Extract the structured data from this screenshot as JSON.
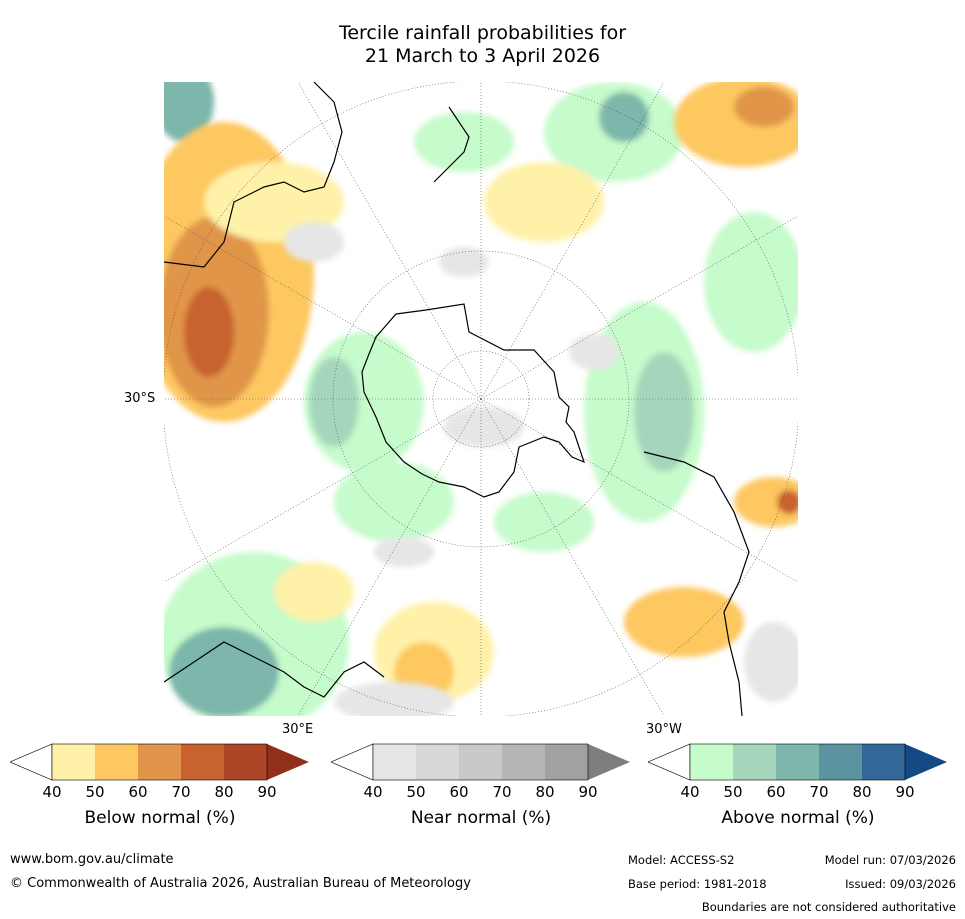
{
  "title": {
    "line1": "Tercile rainfall probabilities for",
    "line2": "21 March to 3 April 2026"
  },
  "map": {
    "labels": {
      "lat_label": "30°S",
      "lon_east": "30°E",
      "lon_west": "30°W"
    }
  },
  "colorbars": [
    {
      "title": "Below normal (%)",
      "ticks": [
        "40",
        "50",
        "60",
        "70",
        "80",
        "90"
      ],
      "colors": [
        "#fff1a8",
        "#fdc861",
        "#e0954a",
        "#c8622e",
        "#ae4526",
        "#8f2f1c"
      ]
    },
    {
      "title": "Near normal (%)",
      "ticks": [
        "40",
        "50",
        "60",
        "70",
        "80",
        "90"
      ],
      "colors": [
        "#e6e6e6",
        "#d8d8d8",
        "#c9c9c9",
        "#b6b6b6",
        "#a1a1a1",
        "#7e7e7e"
      ]
    },
    {
      "title": "Above normal (%)",
      "ticks": [
        "40",
        "50",
        "60",
        "70",
        "80",
        "90"
      ],
      "colors": [
        "#c6fbcb",
        "#a5d6bb",
        "#7db6ab",
        "#5c93a0",
        "#316899",
        "#134a86"
      ]
    }
  ],
  "footer": {
    "website": "www.bom.gov.au/climate",
    "copyright": "© Commonwealth of Australia 2026, Australian Bureau of Meteorology",
    "model": "Model: ACCESS-S2",
    "base_period": "Base period: 1981-2018",
    "model_run": "Model run: 07/03/2026",
    "issued": "Issued: 09/03/2026",
    "boundaries": "Boundaries are not considered authoritative"
  }
}
